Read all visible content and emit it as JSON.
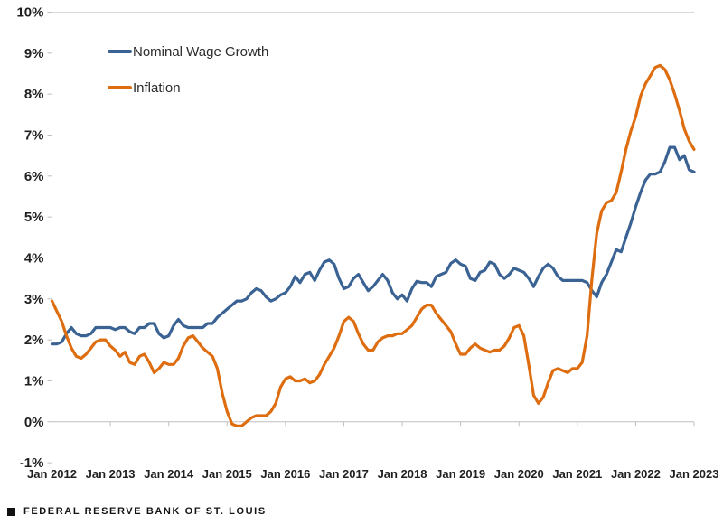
{
  "footer": {
    "brand": "FEDERAL RESERVE BANK OF ST. LOUIS"
  },
  "chart_data": {
    "type": "line",
    "title": "",
    "xlabel": "",
    "ylabel": "",
    "x_unit": "monthly, Jan 2012 through Jan 2023",
    "x_tick_labels": [
      "Jan 2012",
      "Jan 2013",
      "Jan 2014",
      "Jan 2015",
      "Jan 2016",
      "Jan 2017",
      "Jan 2018",
      "Jan 2019",
      "Jan 2020",
      "Jan 2021",
      "Jan 2022",
      "Jan 2023"
    ],
    "y_tick_labels": [
      "10%",
      "9%",
      "8%",
      "7%",
      "6%",
      "5%",
      "4%",
      "3%",
      "2%",
      "1%",
      "0%",
      "-1%"
    ],
    "ylim": [
      -1,
      10
    ],
    "y_tick_step": 1,
    "y_format": "percent",
    "grid": "top border line only, axis line drawn at 0%",
    "legend_position": "top-left inside plot",
    "axis_color": "#bfbfbf",
    "gridline_color": "#d9d9d9",
    "series": [
      {
        "name": "Nominal Wage Growth",
        "color": "#3a6394",
        "values": [
          1.9,
          1.9,
          1.95,
          2.15,
          2.3,
          2.15,
          2.1,
          2.1,
          2.15,
          2.3,
          2.3,
          2.3,
          2.3,
          2.25,
          2.3,
          2.3,
          2.2,
          2.15,
          2.3,
          2.3,
          2.4,
          2.4,
          2.15,
          2.05,
          2.1,
          2.35,
          2.5,
          2.35,
          2.3,
          2.3,
          2.3,
          2.3,
          2.4,
          2.4,
          2.55,
          2.65,
          2.75,
          2.85,
          2.95,
          2.95,
          3.0,
          3.15,
          3.25,
          3.2,
          3.05,
          2.95,
          3.0,
          3.1,
          3.15,
          3.3,
          3.55,
          3.4,
          3.6,
          3.65,
          3.45,
          3.7,
          3.9,
          3.95,
          3.85,
          3.5,
          3.25,
          3.3,
          3.5,
          3.6,
          3.4,
          3.2,
          3.3,
          3.45,
          3.6,
          3.45,
          3.15,
          3.0,
          3.1,
          2.95,
          3.25,
          3.43,
          3.4,
          3.4,
          3.3,
          3.55,
          3.6,
          3.65,
          3.87,
          3.95,
          3.85,
          3.8,
          3.5,
          3.45,
          3.65,
          3.7,
          3.9,
          3.85,
          3.6,
          3.5,
          3.6,
          3.75,
          3.7,
          3.65,
          3.5,
          3.3,
          3.55,
          3.75,
          3.85,
          3.75,
          3.55,
          3.45,
          3.45,
          3.45,
          3.45,
          3.45,
          3.4,
          3.2,
          3.05,
          3.4,
          3.6,
          3.9,
          4.2,
          4.15,
          4.5,
          4.85,
          5.25,
          5.6,
          5.9,
          6.05,
          6.05,
          6.1,
          6.35,
          6.7,
          6.7,
          6.4,
          6.5,
          6.15,
          6.1
        ]
      },
      {
        "name": "Inflation",
        "color": "#de6d10",
        "values": [
          2.95,
          2.7,
          2.45,
          2.1,
          1.8,
          1.6,
          1.55,
          1.65,
          1.8,
          1.95,
          2.0,
          2.0,
          1.85,
          1.75,
          1.6,
          1.7,
          1.45,
          1.4,
          1.6,
          1.65,
          1.45,
          1.2,
          1.3,
          1.45,
          1.4,
          1.4,
          1.55,
          1.85,
          2.05,
          2.1,
          1.95,
          1.8,
          1.7,
          1.6,
          1.3,
          0.7,
          0.25,
          -0.05,
          -0.1,
          -0.1,
          0.0,
          0.1,
          0.15,
          0.15,
          0.15,
          0.25,
          0.45,
          0.85,
          1.05,
          1.1,
          1.0,
          1.0,
          1.05,
          0.95,
          1.0,
          1.15,
          1.4,
          1.6,
          1.8,
          2.1,
          2.45,
          2.55,
          2.45,
          2.15,
          1.9,
          1.75,
          1.75,
          1.95,
          2.05,
          2.1,
          2.1,
          2.15,
          2.15,
          2.25,
          2.35,
          2.55,
          2.75,
          2.85,
          2.85,
          2.65,
          2.5,
          2.35,
          2.2,
          1.9,
          1.65,
          1.65,
          1.8,
          1.9,
          1.8,
          1.75,
          1.7,
          1.75,
          1.75,
          1.85,
          2.05,
          2.3,
          2.35,
          2.1,
          1.4,
          0.65,
          0.45,
          0.6,
          0.95,
          1.25,
          1.3,
          1.25,
          1.2,
          1.3,
          1.3,
          1.45,
          2.1,
          3.5,
          4.6,
          5.15,
          5.35,
          5.4,
          5.6,
          6.1,
          6.65,
          7.1,
          7.45,
          7.95,
          8.25,
          8.45,
          8.65,
          8.7,
          8.6,
          8.35,
          8.0,
          7.6,
          7.15,
          6.85,
          6.65
        ]
      }
    ]
  }
}
